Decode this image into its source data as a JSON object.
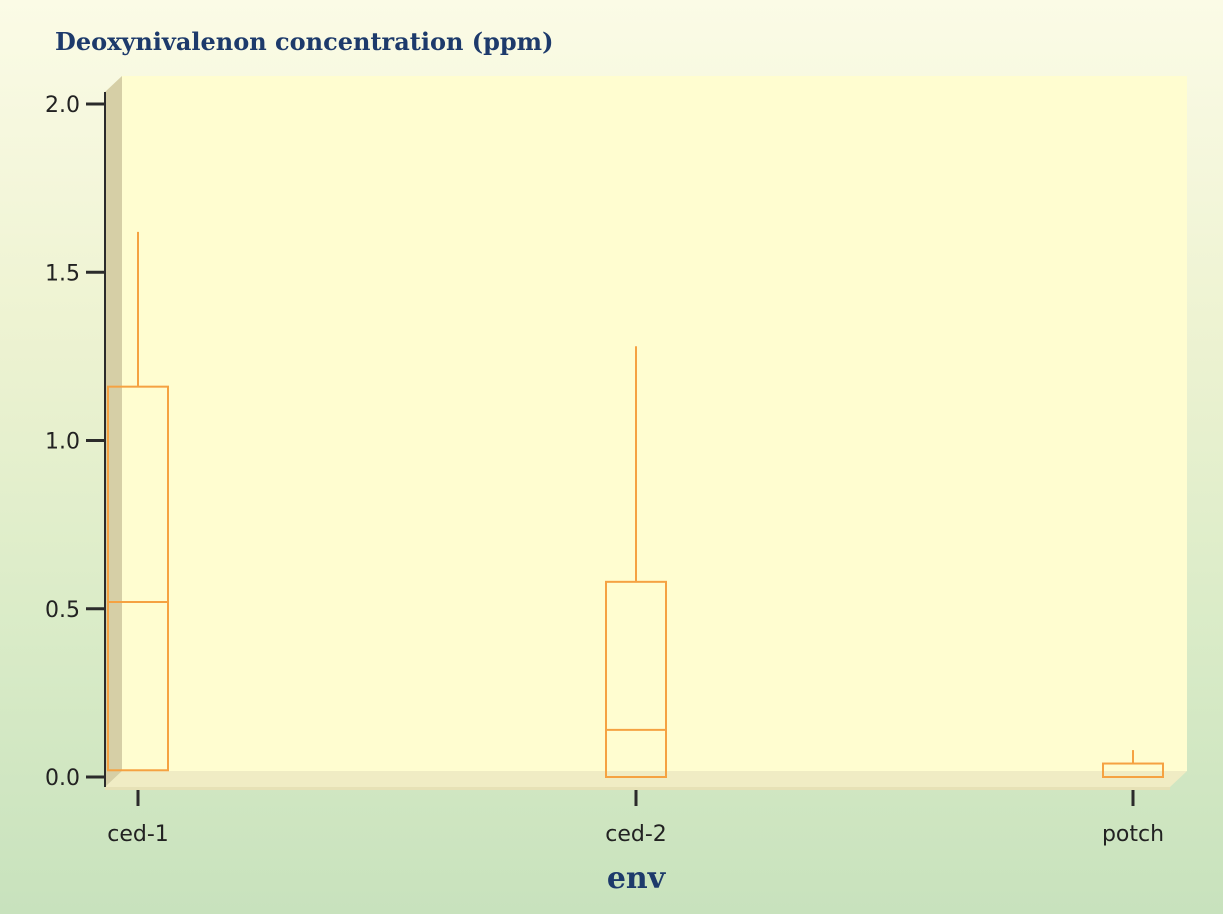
{
  "chart_data": {
    "type": "box",
    "ylabel": "Deoxynivalenon concentration (ppm)",
    "xlabel": "env",
    "categories": [
      "ced-1",
      "ced-2",
      "potch"
    ],
    "ylim": [
      0,
      2.0
    ],
    "yticks": [
      "0.0",
      "0.5",
      "1.0",
      "1.5",
      "2.0"
    ],
    "ytick_values": [
      0,
      0.5,
      1.0,
      1.5,
      2.0
    ],
    "boxes": [
      {
        "category": "ced-1",
        "min": 0.02,
        "q1": 0.02,
        "median": 0.52,
        "q3": 1.16,
        "max": 1.62
      },
      {
        "category": "ced-2",
        "min": 0.0,
        "q1": 0.0,
        "median": 0.14,
        "q3": 0.58,
        "max": 1.28
      },
      {
        "category": "potch",
        "min": 0.0,
        "q1": 0.0,
        "median": 0.0,
        "q3": 0.04,
        "max": 0.08
      }
    ],
    "grid": false,
    "colors": {
      "box": "#f5a242",
      "plot_background": "#fffdd0",
      "wall": "#d6cfa6",
      "floor": "#f0ecc4",
      "label": "#1d3a6b"
    }
  }
}
